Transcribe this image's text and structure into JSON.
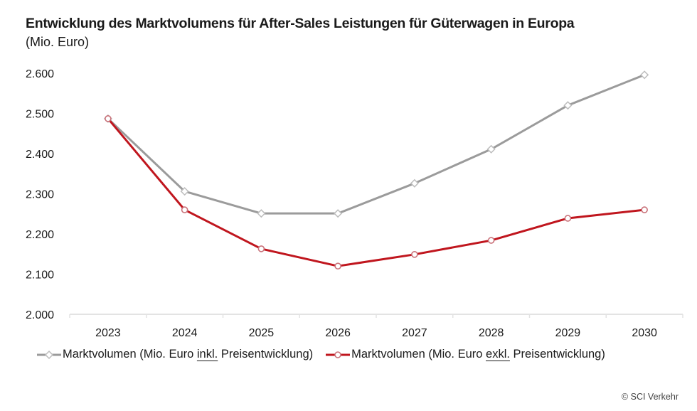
{
  "chart_data": {
    "type": "line",
    "title": "Entwicklung des Marktvolumens für After-Sales Leistungen für Güterwagen in Europa",
    "subtitle": "(Mio. Euro)",
    "xlabel": "",
    "ylabel": "",
    "categories": [
      "2023",
      "2024",
      "2025",
      "2026",
      "2027",
      "2028",
      "2029",
      "2030"
    ],
    "ylim": [
      2000,
      2600
    ],
    "yticks": [
      2000,
      2100,
      2200,
      2300,
      2400,
      2500,
      2600
    ],
    "ytick_labels": [
      "2.000",
      "2.100",
      "2.200",
      "2.300",
      "2.400",
      "2.500",
      "2.600"
    ],
    "grid": false,
    "legend_position": "bottom",
    "series": [
      {
        "name": "Marktvolumen (Mio. Euro inkl. Preisentwicklung)",
        "name_prefix": "Marktvolumen (Mio. Euro ",
        "name_underlined": "inkl.",
        "name_suffix": " Preisentwicklung)",
        "color": "#9b9b9b",
        "marker": "diamond",
        "values": [
          2487,
          2306,
          2251,
          2251,
          2326,
          2411,
          2520,
          2596
        ]
      },
      {
        "name": "Marktvolumen (Mio. Euro exkl. Preisentwicklung)",
        "name_prefix": "Marktvolumen (Mio. Euro ",
        "name_underlined": "exkl.",
        "name_suffix": " Preisentwicklung)",
        "color": "#c0161e",
        "marker": "circle",
        "values": [
          2487,
          2260,
          2163,
          2120,
          2149,
          2184,
          2239,
          2260
        ]
      }
    ]
  },
  "footer": {
    "copyright": "© SCI Verkehr"
  }
}
